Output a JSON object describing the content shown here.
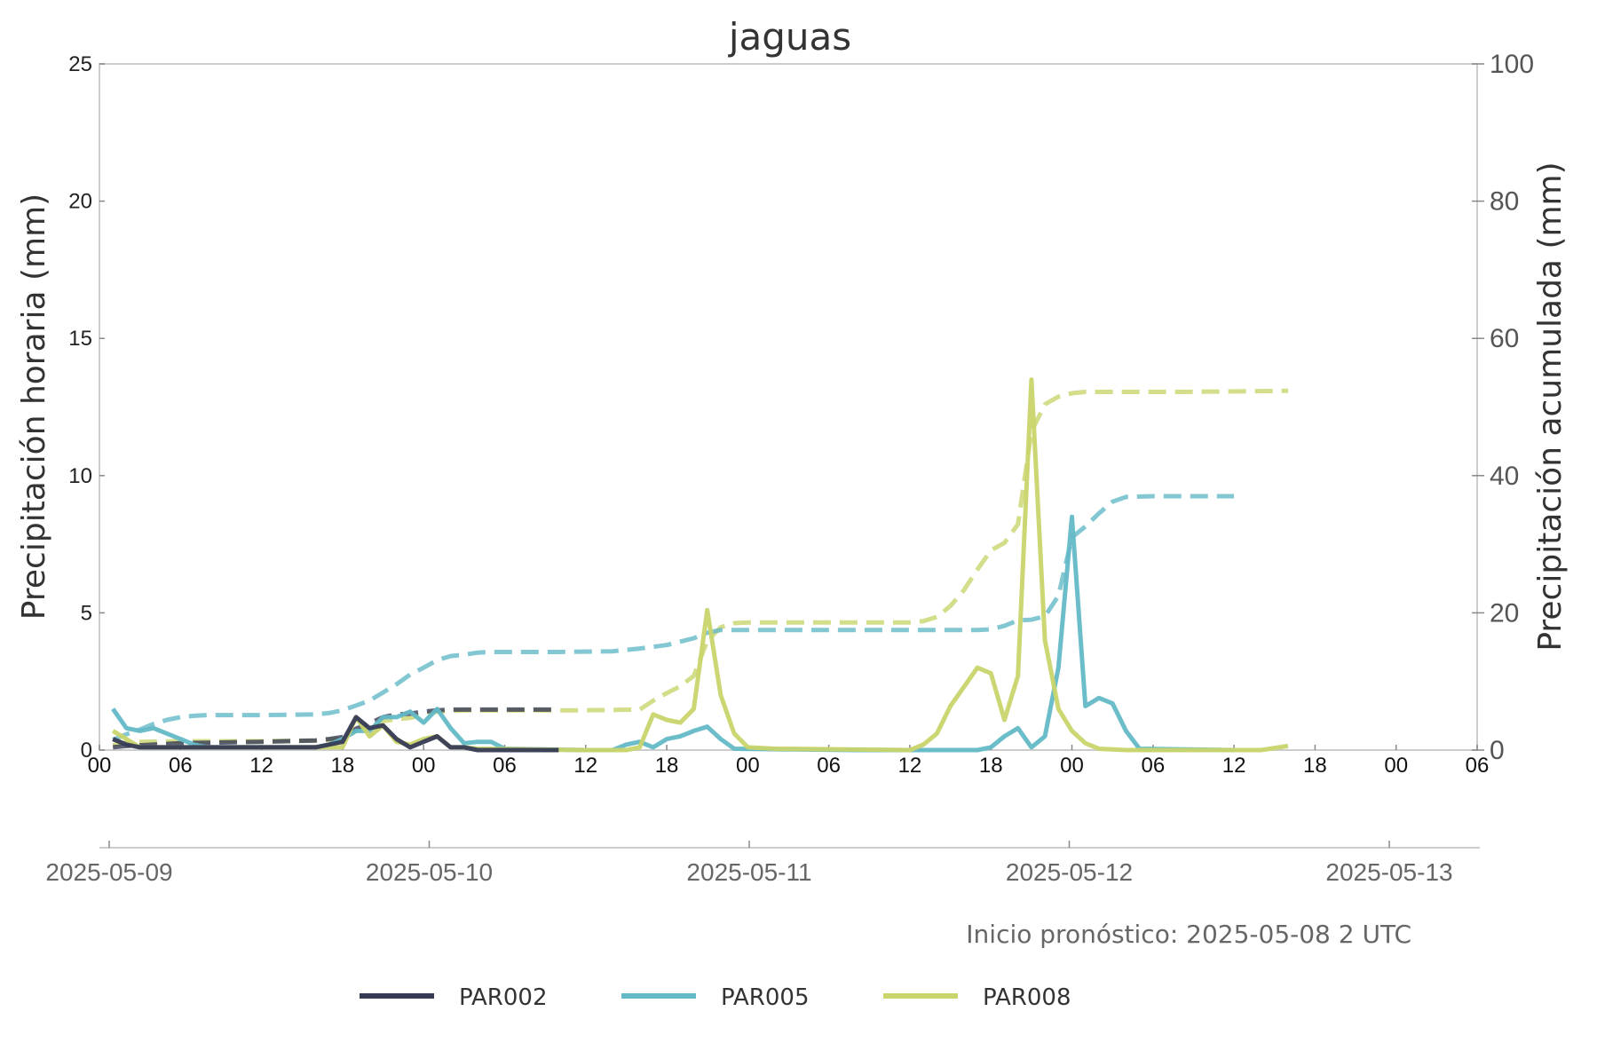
{
  "chart_data": {
    "type": "line",
    "title": "jaguas",
    "ylabel_left": "Precipitación horaria (mm)",
    "ylabel_right": "Precipitación acumulada (mm)",
    "ylim_left": [
      0,
      25
    ],
    "ylim_right": [
      0,
      100
    ],
    "left_ticks": [
      "0",
      "5",
      "10",
      "15",
      "20",
      "25"
    ],
    "right_ticks": [
      "0",
      "20",
      "40",
      "60",
      "80",
      "100"
    ],
    "xlim_hours": [
      0,
      102
    ],
    "hour_ticks": [
      {
        "h": 0,
        "label": "00"
      },
      {
        "h": 6,
        "label": "06"
      },
      {
        "h": 12,
        "label": "12"
      },
      {
        "h": 18,
        "label": "18"
      },
      {
        "h": 24,
        "label": "00"
      },
      {
        "h": 30,
        "label": "06"
      },
      {
        "h": 36,
        "label": "12"
      },
      {
        "h": 42,
        "label": "18"
      },
      {
        "h": 48,
        "label": "00"
      },
      {
        "h": 54,
        "label": "06"
      },
      {
        "h": 60,
        "label": "12"
      },
      {
        "h": 66,
        "label": "18"
      },
      {
        "h": 72,
        "label": "00"
      },
      {
        "h": 78,
        "label": "06"
      },
      {
        "h": 84,
        "label": "12"
      },
      {
        "h": 90,
        "label": "18"
      },
      {
        "h": 96,
        "label": "00"
      },
      {
        "h": 102,
        "label": "06"
      }
    ],
    "date_ticks": [
      "2025-05-09",
      "2025-05-10",
      "2025-05-11",
      "2025-05-12",
      "2025-05-13"
    ],
    "note": "Inicio pronóstico: 2025-05-08 2 UTC",
    "legend_position": "bottom",
    "grid": false,
    "series": [
      {
        "name": "PAR002",
        "color": "#363B55",
        "hourly": [
          [
            1,
            0.4
          ],
          [
            2,
            0.2
          ],
          [
            3,
            0.1
          ],
          [
            4,
            0.1
          ],
          [
            5,
            0.1
          ],
          [
            6,
            0.1
          ],
          [
            8,
            0.1
          ],
          [
            10,
            0.1
          ],
          [
            12,
            0.1
          ],
          [
            14,
            0.1
          ],
          [
            16,
            0.1
          ],
          [
            17,
            0.2
          ],
          [
            18,
            0.3
          ],
          [
            19,
            1.2
          ],
          [
            20,
            0.8
          ],
          [
            21,
            0.9
          ],
          [
            22,
            0.4
          ],
          [
            23,
            0.1
          ],
          [
            24,
            0.3
          ],
          [
            25,
            0.5
          ],
          [
            26,
            0.1
          ],
          [
            27,
            0.1
          ],
          [
            28,
            0
          ],
          [
            34,
            0
          ]
        ],
        "cumulative": [
          [
            1,
            0.4
          ],
          [
            2,
            0.6
          ],
          [
            3,
            0.7
          ],
          [
            6,
            1.0
          ],
          [
            12,
            1.2
          ],
          [
            16,
            1.4
          ],
          [
            17,
            1.6
          ],
          [
            18,
            1.9
          ],
          [
            19,
            3.1
          ],
          [
            20,
            3.9
          ],
          [
            21,
            4.8
          ],
          [
            22,
            5.2
          ],
          [
            23,
            5.3
          ],
          [
            24,
            5.6
          ],
          [
            25,
            5.8
          ],
          [
            26,
            5.9
          ],
          [
            34,
            5.9
          ]
        ]
      },
      {
        "name": "PAR005",
        "color": "#64B9C7",
        "hourly": [
          [
            1,
            1.5
          ],
          [
            2,
            0.8
          ],
          [
            3,
            0.7
          ],
          [
            4,
            0.8
          ],
          [
            5,
            0.6
          ],
          [
            6,
            0.4
          ],
          [
            7,
            0.2
          ],
          [
            8,
            0.1
          ],
          [
            12,
            0.1
          ],
          [
            16,
            0.1
          ],
          [
            17,
            0.2
          ],
          [
            18,
            0.4
          ],
          [
            19,
            0.7
          ],
          [
            20,
            0.7
          ],
          [
            21,
            1.2
          ],
          [
            22,
            1.2
          ],
          [
            23,
            1.4
          ],
          [
            24,
            1.0
          ],
          [
            25,
            1.5
          ],
          [
            26,
            0.8
          ],
          [
            27,
            0.25
          ],
          [
            28,
            0.3
          ],
          [
            29,
            0.3
          ],
          [
            30,
            0.05
          ],
          [
            36,
            0
          ],
          [
            38,
            0
          ],
          [
            39,
            0.2
          ],
          [
            40,
            0.3
          ],
          [
            41,
            0.1
          ],
          [
            42,
            0.4
          ],
          [
            43,
            0.5
          ],
          [
            44,
            0.7
          ],
          [
            45,
            0.85
          ],
          [
            46,
            0.4
          ],
          [
            47,
            0.05
          ],
          [
            56,
            0
          ],
          [
            60,
            0
          ],
          [
            65,
            0
          ],
          [
            66,
            0.1
          ],
          [
            67,
            0.5
          ],
          [
            68,
            0.8
          ],
          [
            69,
            0.1
          ],
          [
            70,
            0.5
          ],
          [
            71,
            3.0
          ],
          [
            72,
            8.5
          ],
          [
            73,
            1.6
          ],
          [
            74,
            1.9
          ],
          [
            75,
            1.7
          ],
          [
            76,
            0.7
          ],
          [
            77,
            0.05
          ],
          [
            84,
            0
          ]
        ],
        "cumulative": [
          [
            1,
            1.5
          ],
          [
            2,
            2.3
          ],
          [
            3,
            3.0
          ],
          [
            4,
            3.8
          ],
          [
            5,
            4.4
          ],
          [
            6,
            4.8
          ],
          [
            7,
            5.0
          ],
          [
            8,
            5.1
          ],
          [
            12,
            5.1
          ],
          [
            16,
            5.2
          ],
          [
            17,
            5.4
          ],
          [
            18,
            5.8
          ],
          [
            19,
            6.5
          ],
          [
            20,
            7.2
          ],
          [
            21,
            8.4
          ],
          [
            22,
            9.6
          ],
          [
            23,
            11.0
          ],
          [
            24,
            12.0
          ],
          [
            25,
            13.1
          ],
          [
            26,
            13.7
          ],
          [
            27,
            13.9
          ],
          [
            28,
            14.2
          ],
          [
            29,
            14.3
          ],
          [
            34,
            14.3
          ],
          [
            38,
            14.4
          ],
          [
            40,
            14.8
          ],
          [
            42,
            15.3
          ],
          [
            44,
            16.3
          ],
          [
            45,
            17.1
          ],
          [
            46,
            17.5
          ],
          [
            50,
            17.5
          ],
          [
            60,
            17.5
          ],
          [
            65,
            17.5
          ],
          [
            66,
            17.6
          ],
          [
            67,
            18.1
          ],
          [
            68,
            18.9
          ],
          [
            69,
            19.0
          ],
          [
            70,
            19.5
          ],
          [
            71,
            22.5
          ],
          [
            72,
            31.0
          ],
          [
            73,
            32.6
          ],
          [
            74,
            34.5
          ],
          [
            75,
            36.2
          ],
          [
            76,
            36.9
          ],
          [
            78,
            37.0
          ],
          [
            84,
            37.0
          ]
        ]
      },
      {
        "name": "PAR008",
        "color": "#C9D46B",
        "hourly": [
          [
            1,
            0.7
          ],
          [
            2,
            0.4
          ],
          [
            3,
            0.1
          ],
          [
            4,
            0.1
          ],
          [
            6,
            0.1
          ],
          [
            8,
            0.1
          ],
          [
            12,
            0.1
          ],
          [
            16,
            0.1
          ],
          [
            17,
            0.1
          ],
          [
            18,
            0.1
          ],
          [
            19,
            1.2
          ],
          [
            20,
            0.5
          ],
          [
            21,
            0.9
          ],
          [
            22,
            0.3
          ],
          [
            23,
            0.2
          ],
          [
            24,
            0.4
          ],
          [
            25,
            0.5
          ],
          [
            26,
            0.1
          ],
          [
            27,
            0.1
          ],
          [
            28,
            0.05
          ],
          [
            36,
            0
          ],
          [
            39,
            0
          ],
          [
            40,
            0.1
          ],
          [
            41,
            1.3
          ],
          [
            42,
            1.1
          ],
          [
            43,
            1.0
          ],
          [
            44,
            1.5
          ],
          [
            45,
            5.1
          ],
          [
            46,
            2.0
          ],
          [
            47,
            0.6
          ],
          [
            48,
            0.1
          ],
          [
            50,
            0.05
          ],
          [
            60,
            0
          ],
          [
            61,
            0.2
          ],
          [
            62,
            0.6
          ],
          [
            63,
            1.6
          ],
          [
            64,
            2.3
          ],
          [
            65,
            3.0
          ],
          [
            66,
            2.8
          ],
          [
            67,
            1.1
          ],
          [
            68,
            2.7
          ],
          [
            69,
            13.5
          ],
          [
            70,
            4.0
          ],
          [
            71,
            1.5
          ],
          [
            72,
            0.7
          ],
          [
            73,
            0.25
          ],
          [
            74,
            0.05
          ],
          [
            76,
            0
          ],
          [
            86,
            0
          ],
          [
            88,
            0.15
          ]
        ],
        "cumulative": [
          [
            1,
            0.7
          ],
          [
            2,
            1.1
          ],
          [
            3,
            1.2
          ],
          [
            6,
            1.3
          ],
          [
            12,
            1.3
          ],
          [
            16,
            1.4
          ],
          [
            17,
            1.5
          ],
          [
            18,
            1.6
          ],
          [
            19,
            2.8
          ],
          [
            20,
            3.3
          ],
          [
            21,
            4.2
          ],
          [
            22,
            4.5
          ],
          [
            23,
            4.7
          ],
          [
            24,
            5.1
          ],
          [
            25,
            5.6
          ],
          [
            26,
            5.7
          ],
          [
            27,
            5.8
          ],
          [
            36,
            5.8
          ],
          [
            40,
            5.9
          ],
          [
            41,
            7.2
          ],
          [
            42,
            8.3
          ],
          [
            43,
            9.3
          ],
          [
            44,
            10.8
          ],
          [
            45,
            15.9
          ],
          [
            46,
            17.9
          ],
          [
            47,
            18.5
          ],
          [
            48,
            18.6
          ],
          [
            60,
            18.6
          ],
          [
            61,
            18.8
          ],
          [
            62,
            19.4
          ],
          [
            63,
            21.0
          ],
          [
            64,
            23.3
          ],
          [
            65,
            26.3
          ],
          [
            66,
            29.1
          ],
          [
            67,
            30.2
          ],
          [
            68,
            32.9
          ],
          [
            69,
            46.4
          ],
          [
            70,
            50.4
          ],
          [
            71,
            51.5
          ],
          [
            72,
            52.0
          ],
          [
            73,
            52.2
          ],
          [
            80,
            52.2
          ],
          [
            88,
            52.35
          ]
        ]
      }
    ]
  }
}
